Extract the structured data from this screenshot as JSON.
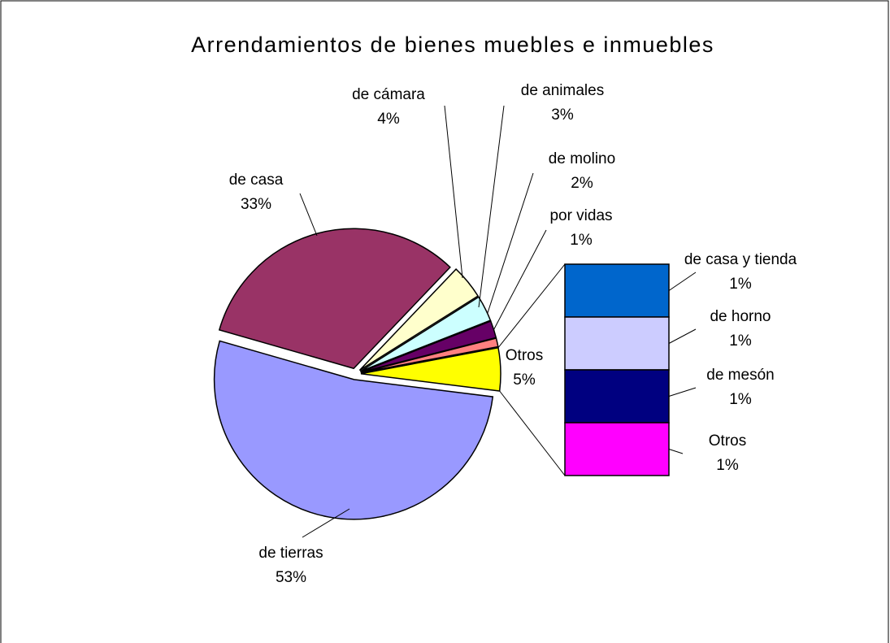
{
  "chart_data": {
    "type": "pie-of-bar",
    "title": "Arrendamientos de bienes muebles e inmuebles",
    "categories": [
      "de tierras",
      "Otros",
      "por vidas",
      "de molino",
      "de animales",
      "de cámara",
      "de casa"
    ],
    "values": [
      53,
      5,
      1,
      2,
      3,
      4,
      33
    ],
    "value_labels": [
      "53%",
      "5%",
      "1%",
      "2%",
      "3%",
      "4%",
      "33%"
    ],
    "colors": [
      "#9999ff",
      "#ffff00",
      "#ff8080",
      "#660066",
      "#ccffff",
      "#ffffcc",
      "#993366"
    ],
    "bar": {
      "categories": [
        "de casa y tienda",
        "de horno",
        "de mesón",
        "Otros"
      ],
      "values": [
        1,
        1,
        1,
        1
      ],
      "value_labels": [
        "1%",
        "1%",
        "1%",
        "1%"
      ],
      "colors": [
        "#0066cc",
        "#ccccff",
        "#000080",
        "#ff00ff"
      ]
    }
  }
}
